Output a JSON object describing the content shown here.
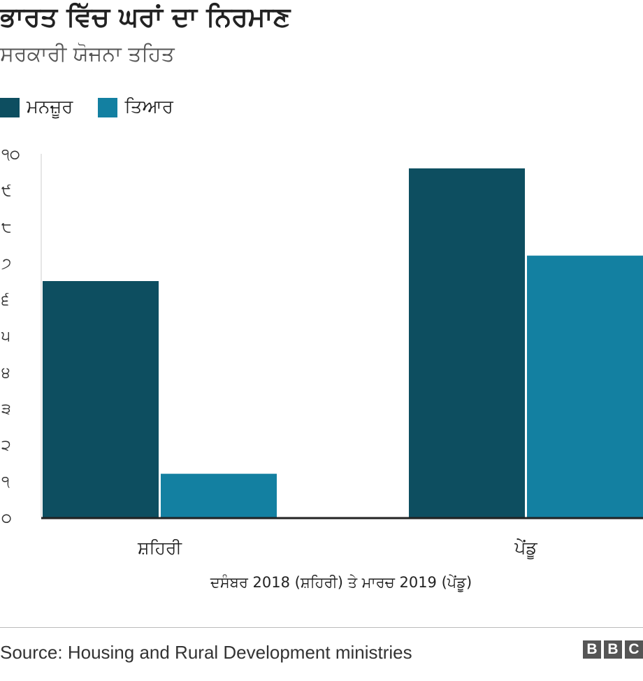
{
  "header": {
    "title": "ਭਾਰਤ ਵਿੱਚ ਘਰਾਂ ਦਾ ਨਿਰਮਾਣ",
    "subtitle": "ਸਰਕਾਰੀ ਯੋਜਨਾ ਤਹਿਤ"
  },
  "legend": [
    {
      "label": "ਮਨਜ਼ੂਰ",
      "color": "#0d4e60"
    },
    {
      "label": "ਤਿਆਰ",
      "color": "#1380a1"
    }
  ],
  "chart_data": {
    "type": "bar",
    "categories": [
      "ਸ਼ਹਿਰੀ",
      "ਪੇਂਡੂ"
    ],
    "series": [
      {
        "name": "ਮਨਜ਼ੂਰ",
        "values": [
          6.5,
          9.6
        ],
        "color": "#0d4e60"
      },
      {
        "name": "ਤਿਆਰ",
        "values": [
          1.2,
          7.2
        ],
        "color": "#1380a1"
      }
    ],
    "ylim": [
      0,
      10
    ],
    "yticks": [
      0,
      1,
      2,
      3,
      4,
      5,
      6,
      7,
      8,
      9,
      10
    ],
    "ytick_labels": [
      "੦",
      "੧",
      "੨",
      "੩",
      "੪",
      "੫",
      "੬",
      "੭",
      "੮",
      "੯",
      "੧੦"
    ],
    "xlabel": "ਦਸੰਬਰ 2018 (ਸ਼ਹਿਰੀ) ਤੇ ਮਾਰਚ 2019 (ਪੇਂਡੂ)",
    "ylabel": "",
    "grid": false,
    "legend_position": "top-left"
  },
  "footer": {
    "source": "Source: Housing and Rural Development ministries",
    "logo_letters": [
      "B",
      "B",
      "C"
    ]
  }
}
